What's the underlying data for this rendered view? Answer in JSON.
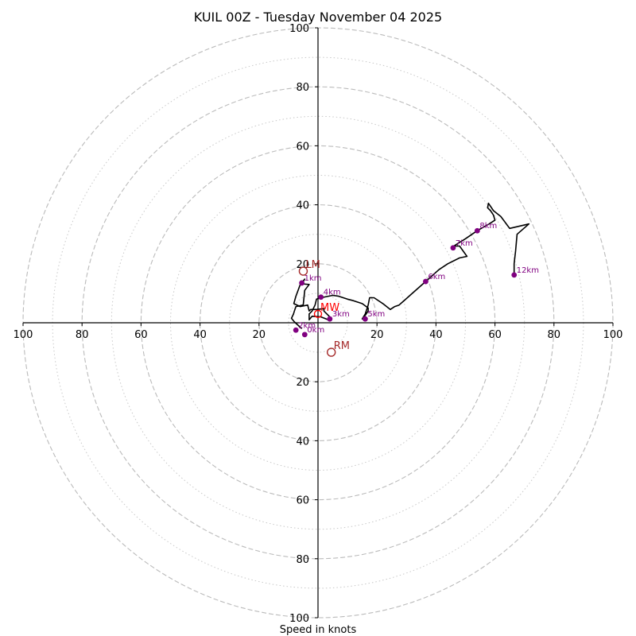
{
  "chart_data": {
    "type": "hodograph",
    "title": "KUIL 00Z - Tuesday November 04 2025",
    "xlabel": "Speed in knots",
    "units": "knots",
    "range": [
      -100,
      100
    ],
    "rings_major": [
      20,
      40,
      60,
      80,
      100
    ],
    "rings_minor": [
      10,
      30,
      50,
      70,
      90
    ],
    "tick_labels": [
      "100",
      "80",
      "60",
      "40",
      "20",
      "20",
      "40",
      "60",
      "80",
      "100"
    ],
    "axis_ticks": [
      -100,
      -80,
      -60,
      -40,
      -20,
      20,
      40,
      60,
      80,
      100
    ],
    "colors": {
      "trace": "#000000",
      "height_marker": "#800080",
      "motion": "#a52a2a",
      "mean_wind": "#ff0000",
      "ring": "#bbbbbb"
    },
    "trace": [
      [
        -5.5,
        -2
      ],
      [
        -8,
        0.3
      ],
      [
        -9,
        1.5
      ],
      [
        -8.3,
        3
      ],
      [
        -8,
        4
      ],
      [
        -7.5,
        5.5
      ],
      [
        -5,
        6
      ],
      [
        -4.5,
        11
      ],
      [
        -3,
        13
      ],
      [
        -5.5,
        13.2
      ],
      [
        -4.5,
        14.8
      ],
      [
        -6,
        13
      ],
      [
        -7.5,
        9
      ],
      [
        -8.2,
        6.5
      ],
      [
        -6,
        5.5
      ],
      [
        -3.5,
        6
      ],
      [
        -3,
        4
      ],
      [
        -2.5,
        4.5
      ],
      [
        -0.5,
        4.5
      ],
      [
        2,
        4.8
      ],
      [
        2,
        4
      ],
      [
        4,
        2
      ],
      [
        3.5,
        1
      ],
      [
        1,
        2
      ],
      [
        -2,
        2.2
      ],
      [
        -3,
        1
      ],
      [
        -3,
        3
      ],
      [
        -2,
        4
      ],
      [
        -1,
        6
      ],
      [
        -0.5,
        8
      ],
      [
        1,
        8.5
      ],
      [
        5,
        9.3
      ],
      [
        7,
        9
      ],
      [
        10,
        8
      ],
      [
        12,
        7.5
      ],
      [
        15,
        6.5
      ],
      [
        17,
        5
      ],
      [
        17,
        4
      ],
      [
        16,
        2.5
      ],
      [
        15,
        1.3
      ],
      [
        16,
        3
      ],
      [
        17,
        6
      ],
      [
        17.5,
        8.5
      ],
      [
        19,
        8.5
      ],
      [
        22,
        6.5
      ],
      [
        24.5,
        4.5
      ],
      [
        26,
        5.5
      ],
      [
        27.5,
        6
      ],
      [
        32,
        10
      ],
      [
        36.5,
        14
      ],
      [
        41,
        18
      ],
      [
        44,
        20
      ],
      [
        48,
        22
      ],
      [
        50.5,
        22.5
      ],
      [
        48,
        26
      ],
      [
        46,
        26
      ],
      [
        50,
        28.5
      ],
      [
        54,
        31.2
      ],
      [
        58,
        33.5
      ],
      [
        60,
        34.8
      ],
      [
        59.5,
        36.5
      ],
      [
        58.5,
        38
      ],
      [
        57.5,
        39
      ],
      [
        57.8,
        40.5
      ],
      [
        59.5,
        38
      ],
      [
        62,
        36
      ],
      [
        65,
        32
      ],
      [
        71.5,
        33.5
      ],
      [
        67.5,
        30
      ],
      [
        67,
        24.5
      ],
      [
        66.5,
        20
      ],
      [
        66.5,
        16
      ]
    ],
    "height_markers": [
      {
        "label": "0km",
        "u": -4.5,
        "v": -4
      },
      {
        "label": "1km",
        "u": -5.5,
        "v": 13.5
      },
      {
        "label": "2km",
        "u": -7.5,
        "v": -2.5
      },
      {
        "label": "3km",
        "u": 4,
        "v": 1.3
      },
      {
        "label": "4km",
        "u": 1,
        "v": 8.7
      },
      {
        "label": "5km",
        "u": 16,
        "v": 1.3
      },
      {
        "label": "6km",
        "u": 36.5,
        "v": 14
      },
      {
        "label": "7km",
        "u": 45.8,
        "v": 25.4
      },
      {
        "label": "8km",
        "u": 54,
        "v": 31.2
      },
      {
        "label": "12km",
        "u": 66.5,
        "v": 16.2
      }
    ],
    "storm_motions": [
      {
        "label": "LM",
        "u": -5,
        "v": 17.5
      },
      {
        "label": "RM",
        "u": 4.5,
        "v": -10
      }
    ],
    "mean_wind": {
      "label": "MW",
      "u": 0,
      "v": 3
    }
  }
}
